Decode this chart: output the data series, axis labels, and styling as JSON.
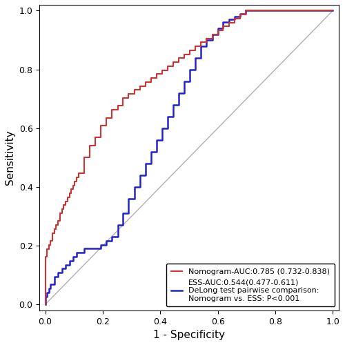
{
  "xlabel": "1 - Specificity",
  "ylabel": "Sensitivity",
  "xlim": [
    -0.02,
    1.02
  ],
  "ylim": [
    -0.02,
    1.02
  ],
  "xticks": [
    0.0,
    0.2,
    0.4,
    0.6,
    0.8,
    1.0
  ],
  "yticks": [
    0.0,
    0.2,
    0.4,
    0.6,
    0.8,
    1.0
  ],
  "diagonal_color": "#b0b0b0",
  "red_color": "#cc3333",
  "blue_color": "#2222cc",
  "background_color": "#ffffff",
  "legend_label_red": "Nomogram-AUC:0.785 (0.732-0.838)",
  "legend_label_blue": "ESS-AUC:0.544(0.477-0.611)",
  "legend_extra_text": "DeLong test pairwise comparison:\nNomogram vs. ESS: P<0.001",
  "legend_fontsize": 8.0,
  "axis_fontsize": 11,
  "tick_fontsize": 9,
  "red_fpr": [
    0.0,
    0.0,
    0.006,
    0.006,
    0.013,
    0.013,
    0.019,
    0.019,
    0.026,
    0.026,
    0.032,
    0.032,
    0.038,
    0.038,
    0.045,
    0.045,
    0.051,
    0.051,
    0.058,
    0.058,
    0.064,
    0.064,
    0.071,
    0.071,
    0.077,
    0.077,
    0.084,
    0.084,
    0.09,
    0.09,
    0.097,
    0.097,
    0.103,
    0.103,
    0.11,
    0.11,
    0.116,
    0.116,
    0.135,
    0.135,
    0.155,
    0.155,
    0.174,
    0.174,
    0.194,
    0.194,
    0.213,
    0.213,
    0.232,
    0.232,
    0.252,
    0.252,
    0.271,
    0.271,
    0.29,
    0.29,
    0.31,
    0.31,
    0.329,
    0.329,
    0.348,
    0.348,
    0.368,
    0.368,
    0.387,
    0.387,
    0.406,
    0.406,
    0.426,
    0.426,
    0.445,
    0.445,
    0.465,
    0.465,
    0.484,
    0.484,
    0.503,
    0.503,
    0.523,
    0.523,
    0.542,
    0.542,
    0.561,
    0.561,
    0.581,
    0.581,
    0.6,
    0.6,
    0.619,
    0.619,
    0.639,
    0.639,
    0.658,
    0.658,
    0.677,
    0.677,
    0.697,
    0.697,
    0.716,
    0.716,
    0.735,
    0.735,
    0.755,
    0.755,
    0.774,
    0.774,
    0.794,
    0.794,
    0.813,
    0.813,
    0.832,
    0.832,
    0.852,
    0.852,
    0.871,
    0.871,
    0.89,
    0.89,
    0.91,
    0.91,
    0.929,
    0.929,
    0.948,
    0.948,
    0.968,
    0.968,
    0.987,
    0.987,
    1.0
  ],
  "red_tpr": [
    0.0,
    0.162,
    0.162,
    0.189,
    0.189,
    0.203,
    0.203,
    0.216,
    0.216,
    0.243,
    0.243,
    0.257,
    0.257,
    0.27,
    0.27,
    0.284,
    0.284,
    0.311,
    0.311,
    0.324,
    0.324,
    0.338,
    0.338,
    0.351,
    0.351,
    0.365,
    0.365,
    0.378,
    0.378,
    0.392,
    0.392,
    0.405,
    0.405,
    0.419,
    0.419,
    0.432,
    0.432,
    0.446,
    0.446,
    0.5,
    0.5,
    0.541,
    0.541,
    0.568,
    0.568,
    0.608,
    0.608,
    0.635,
    0.635,
    0.662,
    0.662,
    0.676,
    0.676,
    0.703,
    0.703,
    0.716,
    0.716,
    0.73,
    0.73,
    0.743,
    0.743,
    0.757,
    0.757,
    0.77,
    0.77,
    0.784,
    0.784,
    0.797,
    0.797,
    0.811,
    0.811,
    0.824,
    0.824,
    0.838,
    0.838,
    0.851,
    0.851,
    0.865,
    0.865,
    0.878,
    0.878,
    0.892,
    0.892,
    0.905,
    0.905,
    0.919,
    0.919,
    0.932,
    0.932,
    0.946,
    0.946,
    0.959,
    0.959,
    0.973,
    0.973,
    0.986,
    0.986,
    1.0,
    1.0,
    1.0,
    1.0,
    1.0,
    1.0,
    1.0,
    1.0,
    1.0,
    1.0,
    1.0,
    1.0,
    1.0,
    1.0,
    1.0,
    1.0,
    1.0,
    1.0,
    1.0,
    1.0,
    1.0,
    1.0,
    1.0,
    1.0,
    1.0,
    1.0,
    1.0,
    1.0,
    1.0,
    1.0,
    1.0,
    1.0
  ],
  "blue_fpr": [
    0.0,
    0.0,
    0.006,
    0.006,
    0.013,
    0.013,
    0.019,
    0.019,
    0.032,
    0.032,
    0.045,
    0.045,
    0.058,
    0.058,
    0.071,
    0.071,
    0.084,
    0.084,
    0.097,
    0.097,
    0.11,
    0.11,
    0.135,
    0.135,
    0.155,
    0.155,
    0.174,
    0.174,
    0.194,
    0.194,
    0.213,
    0.213,
    0.232,
    0.232,
    0.252,
    0.252,
    0.271,
    0.271,
    0.29,
    0.29,
    0.31,
    0.31,
    0.329,
    0.329,
    0.348,
    0.348,
    0.368,
    0.368,
    0.387,
    0.387,
    0.406,
    0.406,
    0.426,
    0.426,
    0.445,
    0.445,
    0.465,
    0.465,
    0.484,
    0.484,
    0.503,
    0.503,
    0.523,
    0.523,
    0.542,
    0.542,
    0.561,
    0.561,
    0.581,
    0.581,
    0.6,
    0.6,
    0.619,
    0.619,
    0.639,
    0.639,
    0.658,
    0.658,
    0.677,
    0.677,
    0.697,
    0.697,
    0.716,
    0.716,
    0.735,
    0.735,
    0.755,
    0.755,
    0.774,
    0.774,
    0.794,
    0.794,
    0.813,
    0.813,
    0.832,
    0.832,
    0.852,
    0.852,
    0.871,
    0.871,
    0.89,
    0.89,
    0.91,
    0.91,
    0.929,
    0.929,
    0.948,
    0.948,
    0.968,
    0.968,
    0.987,
    0.987,
    1.0
  ],
  "blue_tpr": [
    0.0,
    0.027,
    0.027,
    0.041,
    0.041,
    0.054,
    0.054,
    0.068,
    0.068,
    0.095,
    0.095,
    0.108,
    0.108,
    0.122,
    0.122,
    0.135,
    0.135,
    0.149,
    0.149,
    0.162,
    0.162,
    0.176,
    0.176,
    0.19,
    0.19,
    0.19,
    0.19,
    0.19,
    0.19,
    0.203,
    0.203,
    0.216,
    0.216,
    0.23,
    0.23,
    0.27,
    0.27,
    0.31,
    0.31,
    0.36,
    0.36,
    0.4,
    0.4,
    0.44,
    0.44,
    0.48,
    0.48,
    0.52,
    0.52,
    0.56,
    0.56,
    0.6,
    0.6,
    0.64,
    0.64,
    0.68,
    0.68,
    0.72,
    0.72,
    0.76,
    0.76,
    0.8,
    0.8,
    0.84,
    0.84,
    0.88,
    0.88,
    0.9,
    0.9,
    0.92,
    0.92,
    0.94,
    0.94,
    0.96,
    0.96,
    0.97,
    0.97,
    0.98,
    0.98,
    0.99,
    0.99,
    1.0,
    1.0,
    1.0,
    1.0,
    1.0,
    1.0,
    1.0,
    1.0,
    1.0,
    1.0,
    1.0,
    1.0,
    1.0,
    1.0,
    1.0,
    1.0,
    1.0,
    1.0,
    1.0,
    1.0,
    1.0,
    1.0,
    1.0,
    1.0,
    1.0,
    1.0,
    1.0,
    1.0,
    1.0,
    1.0,
    1.0,
    1.0
  ]
}
